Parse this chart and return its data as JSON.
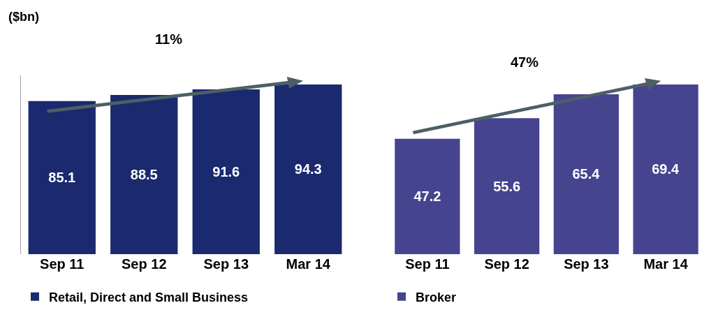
{
  "chart_data": [
    {
      "type": "bar",
      "ylabel": "($bn)",
      "categories": [
        "Sep 11",
        "Sep 12",
        "Sep 13",
        "Mar 14"
      ],
      "tick_labels": "x",
      "data_labels": true,
      "legend": "bottom left",
      "annotations": [
        "11%"
      ],
      "series": [
        {
          "name": "Retail, Direct and Small Business",
          "color": "#1b2a6e",
          "values": [
            85.1,
            88.5,
            91.6,
            94.3
          ]
        }
      ]
    },
    {
      "type": "bar",
      "categories": [
        "Sep 11",
        "Sep 12",
        "Sep 13",
        "Mar 14"
      ],
      "tick_labels": "x",
      "data_labels": true,
      "legend": "bottom left",
      "annotations": [
        "47%"
      ],
      "series": [
        {
          "name": "Broker",
          "color": "#46448f",
          "values": [
            47.2,
            55.6,
            65.4,
            69.4
          ]
        }
      ]
    }
  ]
}
